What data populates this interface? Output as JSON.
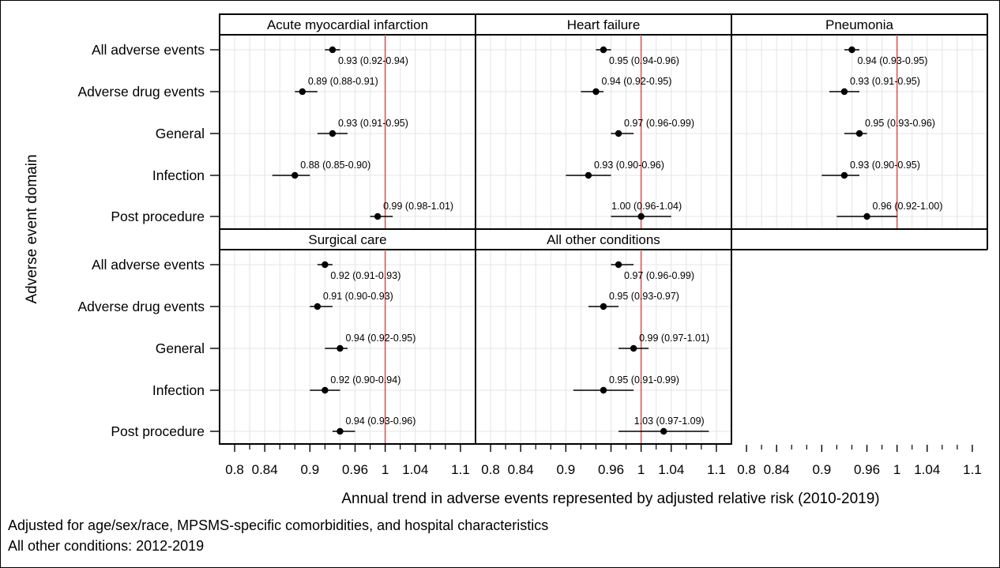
{
  "chart_data": {
    "type": "forest",
    "xlabel": "Annual trend in adverse events represented by adjusted relative risk (2010-2019)",
    "ylabel": "Adverse event domain",
    "xlim": [
      0.78,
      1.12
    ],
    "xticks": [
      0.8,
      0.84,
      0.9,
      0.96,
      1,
      1.04,
      1.1
    ],
    "minor_ticks": [
      0.82,
      0.86,
      0.88,
      0.92,
      0.94,
      0.98,
      1.02,
      1.06,
      1.08
    ],
    "reference_line": 1,
    "reference_color": "#e05555",
    "grid": true,
    "categories": [
      "All adverse events",
      "Adverse drug events",
      "General",
      "Infection",
      "Post procedure"
    ],
    "panels": [
      {
        "title": "Acute myocardial infarction",
        "estimates": [
          {
            "value": 0.93,
            "lower": 0.92,
            "upper": 0.94,
            "label": "0.93 (0.92-0.94)"
          },
          {
            "value": 0.89,
            "lower": 0.88,
            "upper": 0.91,
            "label": "0.89 (0.88-0.91)"
          },
          {
            "value": 0.93,
            "lower": 0.91,
            "upper": 0.95,
            "label": "0.93 (0.91-0.95)"
          },
          {
            "value": 0.88,
            "lower": 0.85,
            "upper": 0.9,
            "label": "0.88 (0.85-0.90)"
          },
          {
            "value": 0.99,
            "lower": 0.98,
            "upper": 1.01,
            "label": "0.99 (0.98-1.01)"
          }
        ]
      },
      {
        "title": "Heart failure",
        "estimates": [
          {
            "value": 0.95,
            "lower": 0.94,
            "upper": 0.96,
            "label": "0.95 (0.94-0.96)"
          },
          {
            "value": 0.94,
            "lower": 0.92,
            "upper": 0.95,
            "label": "0.94 (0.92-0.95)"
          },
          {
            "value": 0.97,
            "lower": 0.96,
            "upper": 0.99,
            "label": "0.97 (0.96-0.99)"
          },
          {
            "value": 0.93,
            "lower": 0.9,
            "upper": 0.96,
            "label": "0.93 (0.90-0.96)"
          },
          {
            "value": 1.0,
            "lower": 0.96,
            "upper": 1.04,
            "label": "1.00 (0.96-1.04)"
          }
        ]
      },
      {
        "title": "Pneumonia",
        "estimates": [
          {
            "value": 0.94,
            "lower": 0.93,
            "upper": 0.95,
            "label": "0.94 (0.93-0.95)"
          },
          {
            "value": 0.93,
            "lower": 0.91,
            "upper": 0.95,
            "label": "0.93 (0.91-0.95)"
          },
          {
            "value": 0.95,
            "lower": 0.93,
            "upper": 0.96,
            "label": "0.95 (0.93-0.96)"
          },
          {
            "value": 0.93,
            "lower": 0.9,
            "upper": 0.95,
            "label": "0.93 (0.90-0.95)"
          },
          {
            "value": 0.96,
            "lower": 0.92,
            "upper": 1.0,
            "label": "0.96 (0.92-1.00)"
          }
        ]
      },
      {
        "title": "Surgical care",
        "estimates": [
          {
            "value": 0.92,
            "lower": 0.91,
            "upper": 0.93,
            "label": "0.92 (0.91-0.93)"
          },
          {
            "value": 0.91,
            "lower": 0.9,
            "upper": 0.93,
            "label": "0.91 (0.90-0.93)"
          },
          {
            "value": 0.94,
            "lower": 0.92,
            "upper": 0.95,
            "label": "0.94 (0.92-0.95)"
          },
          {
            "value": 0.92,
            "lower": 0.9,
            "upper": 0.94,
            "label": "0.92 (0.90-0.94)"
          },
          {
            "value": 0.94,
            "lower": 0.93,
            "upper": 0.96,
            "label": "0.94 (0.93-0.96)"
          }
        ]
      },
      {
        "title": "All other conditions",
        "estimates": [
          {
            "value": 0.97,
            "lower": 0.96,
            "upper": 0.99,
            "label": "0.97 (0.96-0.99)"
          },
          {
            "value": 0.95,
            "lower": 0.93,
            "upper": 0.97,
            "label": "0.95 (0.93-0.97)"
          },
          {
            "value": 0.99,
            "lower": 0.97,
            "upper": 1.01,
            "label": "0.99 (0.97-1.01)"
          },
          {
            "value": 0.95,
            "lower": 0.91,
            "upper": 0.99,
            "label": "0.95 (0.91-0.99)"
          },
          {
            "value": 1.03,
            "lower": 0.97,
            "upper": 1.09,
            "label": "1.03 (0.97-1.09)"
          }
        ]
      }
    ]
  },
  "footnotes": [
    "Adjusted for age/sex/race, MPSMS-specific comorbidities, and hospital characteristics",
    "All other conditions: 2012-2019"
  ]
}
